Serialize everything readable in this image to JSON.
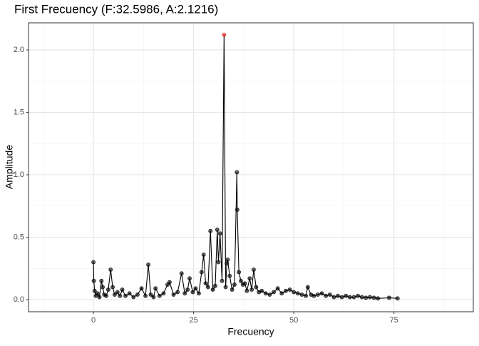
{
  "chart_data": {
    "type": "line",
    "title": "First Frecuency (F:32.5986, A:2.1216)",
    "x_label": "Frecuency",
    "y_label": "Amplitude",
    "x": [
      0,
      0.1,
      0.3,
      0.6,
      1,
      1.5,
      2,
      2.3,
      2.7,
      3.2,
      3.7,
      4.3,
      4.8,
      5.3,
      6,
      6.6,
      7.2,
      8,
      9,
      10,
      11,
      12,
      13,
      13.7,
      14.3,
      15,
      15.5,
      16.5,
      17.5,
      18.5,
      19,
      20,
      21,
      22,
      22.8,
      23.5,
      24,
      24.8,
      25.5,
      26.3,
      27,
      27.5,
      28,
      28.6,
      29.2,
      29.8,
      30.4,
      30.9,
      31.2,
      31.6,
      32.1,
      32.5986,
      33,
      33.3,
      33.5,
      34,
      34.6,
      35.2,
      35.8,
      35.9,
      36.3,
      36.8,
      37.3,
      37.8,
      38.3,
      39,
      39.5,
      40,
      40.6,
      41.3,
      42,
      43,
      44,
      45,
      46,
      47,
      48,
      49,
      50,
      51,
      52,
      53,
      53.5,
      54.3,
      55,
      56,
      57,
      58,
      59,
      60,
      61,
      62,
      63,
      64,
      65,
      66,
      67,
      68,
      69,
      70,
      71,
      73.8,
      75.9
    ],
    "series": [
      {
        "name": "Amplitude",
        "color": "#000000",
        "values": [
          0.3,
          0.15,
          0.07,
          0.03,
          0.05,
          0.02,
          0.15,
          0.1,
          0.04,
          0.03,
          0.08,
          0.24,
          0.1,
          0.04,
          0.06,
          0.03,
          0.08,
          0.03,
          0.05,
          0.02,
          0.04,
          0.09,
          0.03,
          0.28,
          0.04,
          0.02,
          0.09,
          0.03,
          0.05,
          0.12,
          0.14,
          0.04,
          0.06,
          0.21,
          0.05,
          0.08,
          0.17,
          0.06,
          0.09,
          0.05,
          0.22,
          0.36,
          0.13,
          0.1,
          0.55,
          0.08,
          0.11,
          0.56,
          0.3,
          0.53,
          0.15,
          2.1216,
          0.1,
          0.29,
          0.32,
          0.19,
          0.08,
          0.12,
          1.02,
          0.72,
          0.22,
          0.15,
          0.12,
          0.13,
          0.07,
          0.17,
          0.08,
          0.24,
          0.1,
          0.06,
          0.07,
          0.05,
          0.04,
          0.06,
          0.09,
          0.05,
          0.07,
          0.08,
          0.06,
          0.05,
          0.04,
          0.03,
          0.1,
          0.04,
          0.03,
          0.04,
          0.05,
          0.03,
          0.04,
          0.02,
          0.03,
          0.02,
          0.03,
          0.02,
          0.02,
          0.03,
          0.02,
          0.015,
          0.02,
          0.015,
          0.01,
          0.015,
          0.01
        ]
      }
    ],
    "highlight_index": 51,
    "highlight_color": "#e41a1c",
    "xlim": [
      -16.2,
      94.8
    ],
    "ylim": [
      -0.097,
      2.217
    ],
    "xticks": [
      0,
      25,
      50,
      75
    ],
    "yticks": [
      {
        "value": 0,
        "label": "0.0"
      },
      {
        "value": 0.5,
        "label": "0.5"
      },
      {
        "value": 1,
        "label": "1.0"
      },
      {
        "value": 1.5,
        "label": "1.5"
      },
      {
        "value": 2,
        "label": "2.0"
      }
    ],
    "x_minor_grid": [
      -12.5,
      12.5,
      37.5,
      62.5,
      87.5
    ],
    "y_minor_grid": [
      0.25,
      0.75,
      1.25,
      1.75
    ],
    "grid": true
  }
}
